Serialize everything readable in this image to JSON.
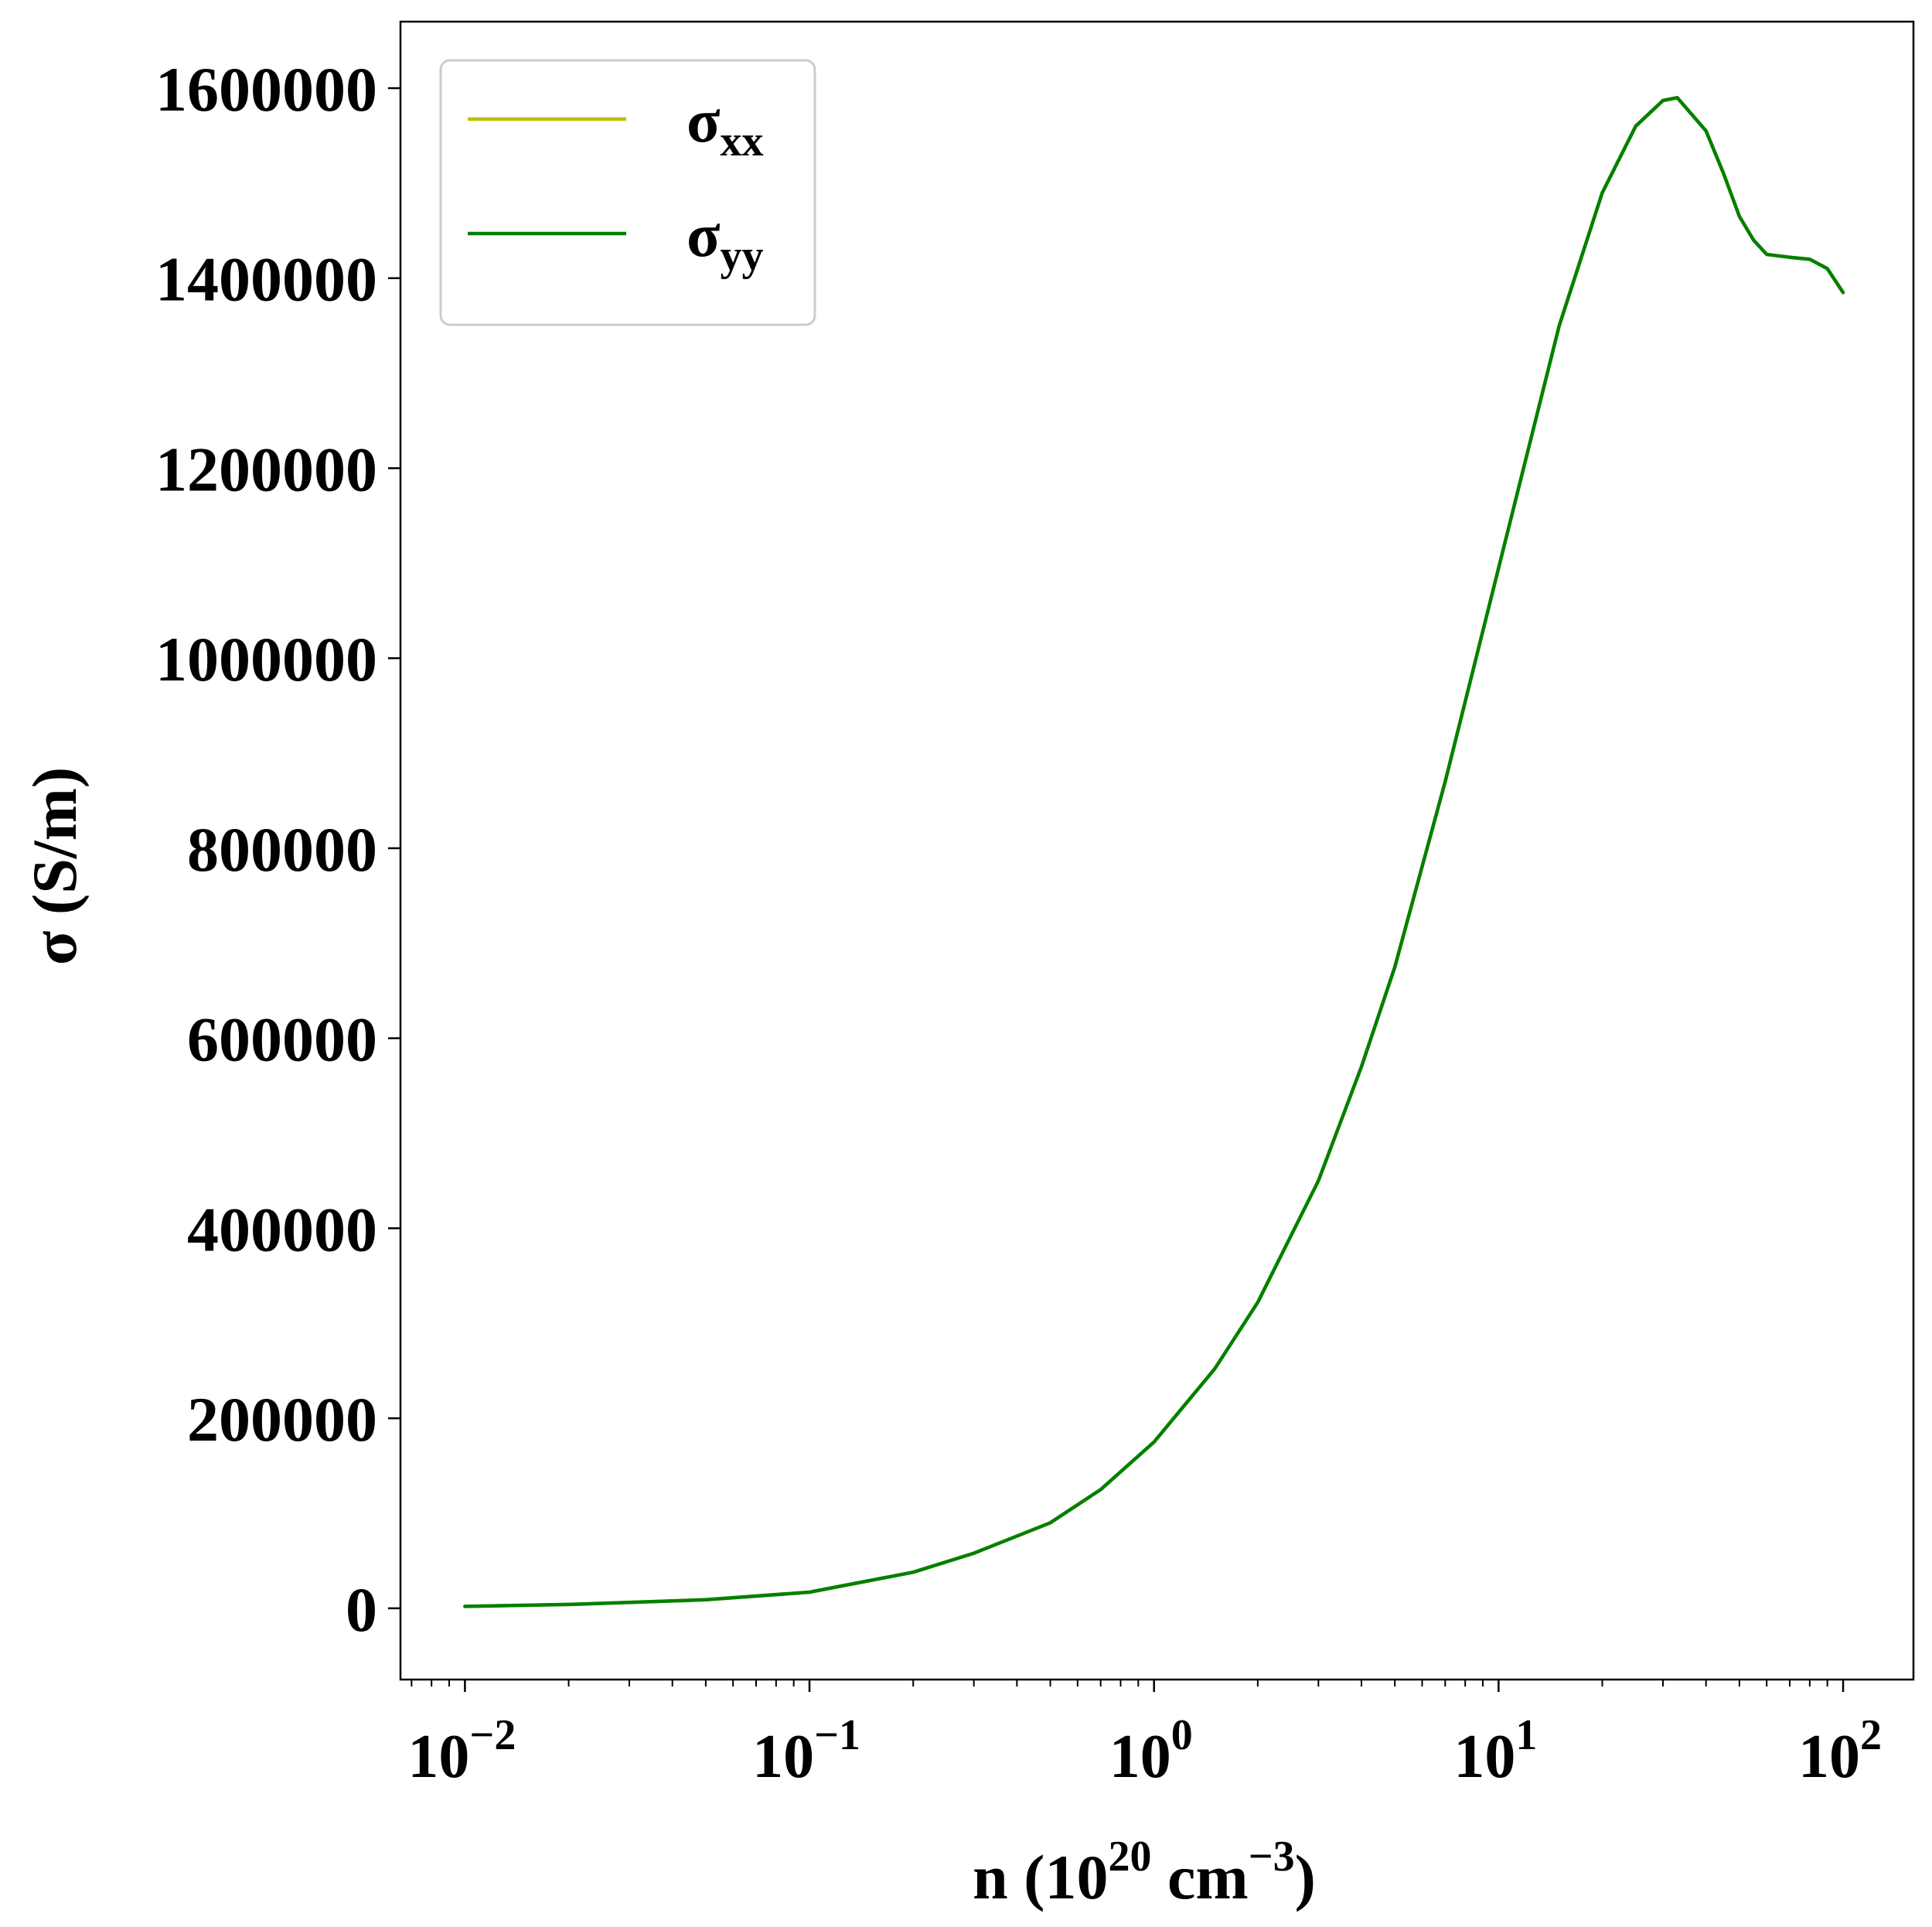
{
  "chart_data": {
    "type": "line",
    "title": "",
    "xlabel": {
      "prefix": "n (10",
      "sup1": "20",
      "mid": " cm",
      "sup2": "−3",
      "suffix": ")"
    },
    "ylabel": "σ (S/m)",
    "xscale": "log",
    "xlim": [
      0.0065,
      160
    ],
    "ylim": [
      -75000,
      1670000
    ],
    "grid": false,
    "legend_position": "top-left",
    "x_ticks": [
      {
        "value": 0.01,
        "base": "10",
        "exp": "−2"
      },
      {
        "value": 0.1,
        "base": "10",
        "exp": "−1"
      },
      {
        "value": 1,
        "base": "10",
        "exp": "0"
      },
      {
        "value": 10,
        "base": "10",
        "exp": "1"
      },
      {
        "value": 100,
        "base": "10",
        "exp": "2"
      }
    ],
    "y_ticks": [
      {
        "value": 0,
        "label": "0"
      },
      {
        "value": 200000,
        "label": "200000"
      },
      {
        "value": 400000,
        "label": "400000"
      },
      {
        "value": 600000,
        "label": "600000"
      },
      {
        "value": 800000,
        "label": "800000"
      },
      {
        "value": 1000000,
        "label": "1000000"
      },
      {
        "value": 1200000,
        "label": "1200000"
      },
      {
        "value": 1400000,
        "label": "1400000"
      },
      {
        "value": 1600000,
        "label": "1600000"
      }
    ],
    "series": [
      {
        "name": "σxx",
        "legend_base": "σ",
        "legend_sub": "xx",
        "color": "#bfbf00",
        "x": [
          0.01,
          0.02,
          0.05,
          0.1,
          0.2,
          0.3,
          0.5,
          0.7,
          1,
          1.5,
          2,
          3,
          4,
          5,
          7,
          10,
          15,
          20,
          25,
          30,
          33,
          40,
          45,
          50,
          55,
          60,
          70,
          80,
          90,
          100
        ],
        "y": [
          2000,
          4000,
          9000,
          17000,
          38000,
          58000,
          90000,
          125000,
          175000,
          252000,
          322000,
          450000,
          570000,
          675000,
          870000,
          1095000,
          1350000,
          1490000,
          1560000,
          1587000,
          1590000,
          1555000,
          1510000,
          1465000,
          1440000,
          1425000,
          1422000,
          1420000,
          1410000,
          1385000
        ]
      },
      {
        "name": "σyy",
        "legend_base": "σ",
        "legend_sub": "yy",
        "color": "#008000",
        "x": [
          0.01,
          0.02,
          0.05,
          0.1,
          0.2,
          0.3,
          0.5,
          0.7,
          1,
          1.5,
          2,
          3,
          4,
          5,
          7,
          10,
          15,
          20,
          25,
          30,
          33,
          40,
          45,
          50,
          55,
          60,
          70,
          80,
          90,
          100
        ],
        "y": [
          2000,
          4000,
          9000,
          17000,
          38000,
          58000,
          90000,
          125000,
          175000,
          252000,
          322000,
          450000,
          570000,
          675000,
          870000,
          1095000,
          1350000,
          1490000,
          1560000,
          1587000,
          1590000,
          1555000,
          1510000,
          1465000,
          1440000,
          1425000,
          1422000,
          1420000,
          1410000,
          1385000
        ]
      }
    ]
  }
}
